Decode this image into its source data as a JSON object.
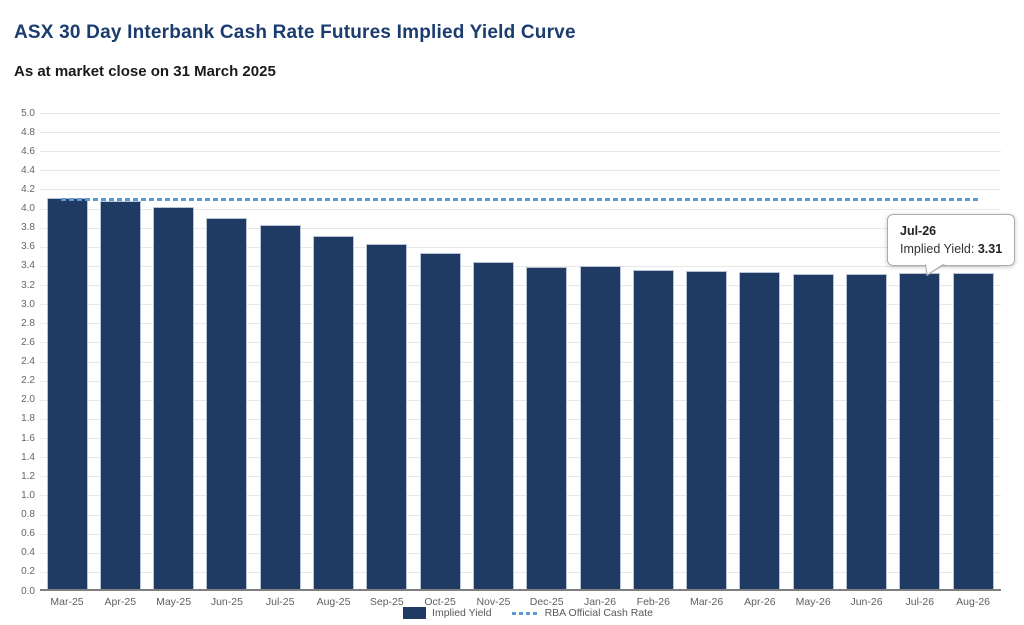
{
  "header": {
    "title": "ASX 30 Day Interbank Cash Rate Futures Implied Yield Curve",
    "subtitle": "As at market close on 31 March 2025"
  },
  "chart_data": {
    "type": "bar",
    "title": "ASX 30 Day Interbank Cash Rate Futures Implied Yield Curve",
    "subtitle": "As at market close on 31 March 2025",
    "categories": [
      "Mar-25",
      "Apr-25",
      "May-25",
      "Jun-25",
      "Jul-25",
      "Aug-25",
      "Sep-25",
      "Oct-25",
      "Nov-25",
      "Dec-25",
      "Jan-26",
      "Feb-26",
      "Mar-26",
      "Apr-26",
      "May-26",
      "Jun-26",
      "Jul-26",
      "Aug-26"
    ],
    "series": [
      {
        "name": "Implied Yield",
        "type": "bar",
        "color": "#1F3A63",
        "values": [
          4.09,
          4.06,
          4.0,
          3.88,
          3.81,
          3.69,
          3.61,
          3.52,
          3.42,
          3.37,
          3.38,
          3.34,
          3.33,
          3.32,
          3.3,
          3.3,
          3.31,
          3.31
        ]
      },
      {
        "name": "RBA Official Cash Rate",
        "type": "dashed-line",
        "color": "#5B9BD5",
        "value": 4.1
      }
    ],
    "xlabel": "",
    "ylabel": "",
    "ylim": [
      0.0,
      5.0
    ],
    "ytick_step": 0.2,
    "yticks": [
      "0.0",
      "0.2",
      "0.4",
      "0.6",
      "0.8",
      "1.0",
      "1.2",
      "1.4",
      "1.6",
      "1.8",
      "2.0",
      "2.2",
      "2.4",
      "2.6",
      "2.8",
      "3.0",
      "3.2",
      "3.4",
      "3.6",
      "3.8",
      "4.0",
      "4.2",
      "4.4",
      "4.6",
      "4.8",
      "5.0"
    ],
    "grid": true,
    "legend_position": "bottom-center"
  },
  "tooltip": {
    "category": "Jul-26",
    "label": "Implied Yield:",
    "value": "3.31"
  },
  "legend": {
    "items": [
      {
        "label": "Implied Yield",
        "swatch": "bar"
      },
      {
        "label": "RBA Official Cash Rate",
        "swatch": "dashed-line"
      }
    ]
  },
  "colors": {
    "bar": "#1F3A63",
    "bar_border": "#b8c4d6",
    "rba_line": "#5B9BD5",
    "title": "#1B3C6E",
    "subtitle": "#1A1A1A",
    "axis_text": "#666666",
    "gridline": "#e8e8e8",
    "axis_line": "#7f7f7f"
  }
}
